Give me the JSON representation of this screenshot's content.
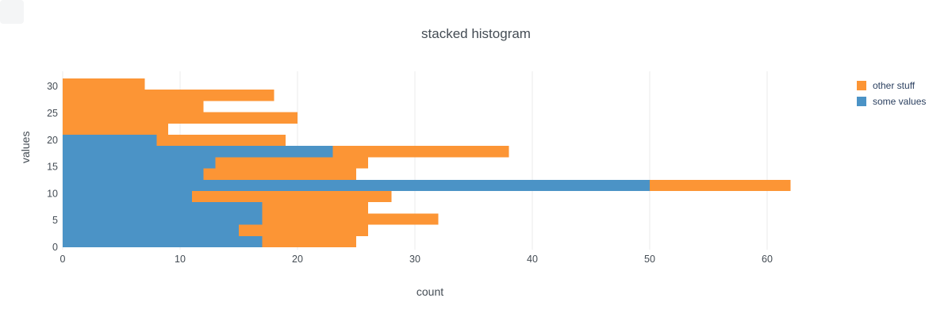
{
  "title": "stacked histogram",
  "x_axis_title": "count",
  "y_axis_title": "values",
  "legend": {
    "items": [
      {
        "label": "other stuff",
        "color": "#FC9535"
      },
      {
        "label": "some values",
        "color": "#4B93C6"
      }
    ]
  },
  "colors": {
    "background": "#ffffff",
    "gridline": "#ebebeb",
    "text": "#444c54",
    "orange": "#FC9535",
    "blue": "#4B93C6"
  },
  "chart_data": {
    "type": "bar",
    "subtype": "stacked-horizontal-histogram",
    "orientation": "horizontal",
    "title": "stacked histogram",
    "xlabel": "count",
    "ylabel": "values",
    "xlim": [
      0,
      66
    ],
    "ylim": [
      0,
      32
    ],
    "grid": true,
    "legend_position": "right",
    "x_ticks": [
      0,
      10,
      20,
      30,
      40,
      50,
      60
    ],
    "y_ticks": [
      0,
      5,
      10,
      15,
      20,
      25,
      30
    ],
    "bin_start": 0,
    "bin_width": 2.1,
    "bin_count": 15,
    "bins_note": "values listed bottom bin (y=0) to top bin (y=31.5)",
    "series": [
      {
        "name": "some values",
        "color": "#4B93C6",
        "values": [
          17,
          15,
          17,
          17,
          11,
          50,
          12,
          13,
          23,
          8,
          0,
          0,
          0,
          0,
          0
        ]
      },
      {
        "name": "other stuff",
        "color": "#FC9535",
        "values": [
          8,
          11,
          15,
          9,
          17,
          12,
          13,
          13,
          15,
          11,
          9,
          20,
          12,
          18,
          7
        ]
      }
    ],
    "stacked_totals": [
      25,
      26,
      32,
      26,
      28,
      62,
      25,
      26,
      38,
      19,
      9,
      20,
      12,
      18,
      7
    ]
  }
}
